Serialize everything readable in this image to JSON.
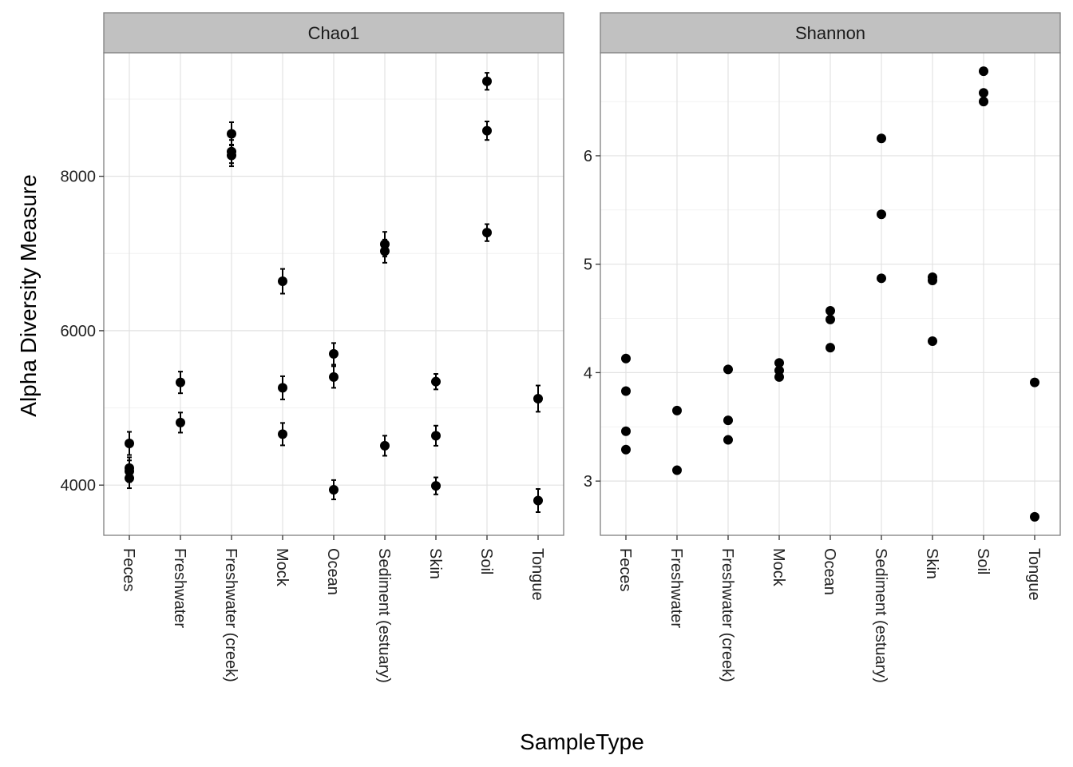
{
  "chart_data": {
    "type": "scatter",
    "xlabel": "SampleType",
    "ylabel": "Alpha Diversity Measure",
    "categories": [
      "Feces",
      "Freshwater",
      "Freshwater (creek)",
      "Mock",
      "Ocean",
      "Sediment (estuary)",
      "Skin",
      "Soil",
      "Tongue"
    ],
    "grid": true,
    "legend": "none",
    "colors": {
      "point": "#000000",
      "strip_bg": "#c1c1c1",
      "panel_border": "#7f7f7f",
      "grid_major": "#e2e2e2",
      "grid_minor": "#f2f2f2"
    },
    "panels": [
      {
        "title": "Chao1",
        "ylim": [
          3350,
          9600
        ],
        "yticks": [
          4000,
          6000,
          8000
        ],
        "ytick_labels": [
          "4000",
          "6000",
          "8000"
        ],
        "points": [
          {
            "x": "Feces",
            "y": 4540,
            "se": 150
          },
          {
            "x": "Feces",
            "y": 4220,
            "se": 140
          },
          {
            "x": "Feces",
            "y": 4180,
            "se": 140
          },
          {
            "x": "Feces",
            "y": 4090,
            "se": 130
          },
          {
            "x": "Freshwater",
            "y": 5330,
            "se": 140
          },
          {
            "x": "Freshwater",
            "y": 4810,
            "se": 130
          },
          {
            "x": "Freshwater (creek)",
            "y": 8550,
            "se": 150
          },
          {
            "x": "Freshwater (creek)",
            "y": 8320,
            "se": 150
          },
          {
            "x": "Freshwater (creek)",
            "y": 8270,
            "se": 140
          },
          {
            "x": "Mock",
            "y": 6640,
            "se": 160
          },
          {
            "x": "Mock",
            "y": 5260,
            "se": 150
          },
          {
            "x": "Mock",
            "y": 4660,
            "se": 145
          },
          {
            "x": "Ocean",
            "y": 5700,
            "se": 140
          },
          {
            "x": "Ocean",
            "y": 5400,
            "se": 140
          },
          {
            "x": "Ocean",
            "y": 3940,
            "se": 125
          },
          {
            "x": "Sediment (estuary)",
            "y": 7120,
            "se": 160
          },
          {
            "x": "Sediment (estuary)",
            "y": 7030,
            "se": 150
          },
          {
            "x": "Sediment (estuary)",
            "y": 4510,
            "se": 130
          },
          {
            "x": "Skin",
            "y": 5340,
            "se": 100
          },
          {
            "x": "Skin",
            "y": 4640,
            "se": 130
          },
          {
            "x": "Skin",
            "y": 3990,
            "se": 110
          },
          {
            "x": "Soil",
            "y": 9230,
            "se": 110
          },
          {
            "x": "Soil",
            "y": 8590,
            "se": 120
          },
          {
            "x": "Soil",
            "y": 7270,
            "se": 110
          },
          {
            "x": "Tongue",
            "y": 5120,
            "se": 170
          },
          {
            "x": "Tongue",
            "y": 3800,
            "se": 150
          }
        ]
      },
      {
        "title": "Shannon",
        "ylim": [
          2.5,
          6.95
        ],
        "yticks": [
          3,
          4,
          5,
          6
        ],
        "ytick_labels": [
          "3",
          "4",
          "5",
          "6"
        ],
        "points": [
          {
            "x": "Feces",
            "y": 4.13
          },
          {
            "x": "Feces",
            "y": 3.83
          },
          {
            "x": "Feces",
            "y": 3.46
          },
          {
            "x": "Feces",
            "y": 3.29
          },
          {
            "x": "Freshwater",
            "y": 3.65
          },
          {
            "x": "Freshwater",
            "y": 3.1
          },
          {
            "x": "Freshwater (creek)",
            "y": 4.03
          },
          {
            "x": "Freshwater (creek)",
            "y": 3.56
          },
          {
            "x": "Freshwater (creek)",
            "y": 3.38
          },
          {
            "x": "Mock",
            "y": 4.09
          },
          {
            "x": "Mock",
            "y": 4.02
          },
          {
            "x": "Mock",
            "y": 3.96
          },
          {
            "x": "Ocean",
            "y": 4.57
          },
          {
            "x": "Ocean",
            "y": 4.49
          },
          {
            "x": "Ocean",
            "y": 4.23
          },
          {
            "x": "Sediment (estuary)",
            "y": 6.16
          },
          {
            "x": "Sediment (estuary)",
            "y": 5.46
          },
          {
            "x": "Sediment (estuary)",
            "y": 4.87
          },
          {
            "x": "Skin",
            "y": 4.88
          },
          {
            "x": "Skin",
            "y": 4.85
          },
          {
            "x": "Skin",
            "y": 4.29
          },
          {
            "x": "Soil",
            "y": 6.78
          },
          {
            "x": "Soil",
            "y": 6.58
          },
          {
            "x": "Soil",
            "y": 6.5
          },
          {
            "x": "Tongue",
            "y": 3.91
          },
          {
            "x": "Tongue",
            "y": 2.67
          }
        ]
      }
    ]
  }
}
